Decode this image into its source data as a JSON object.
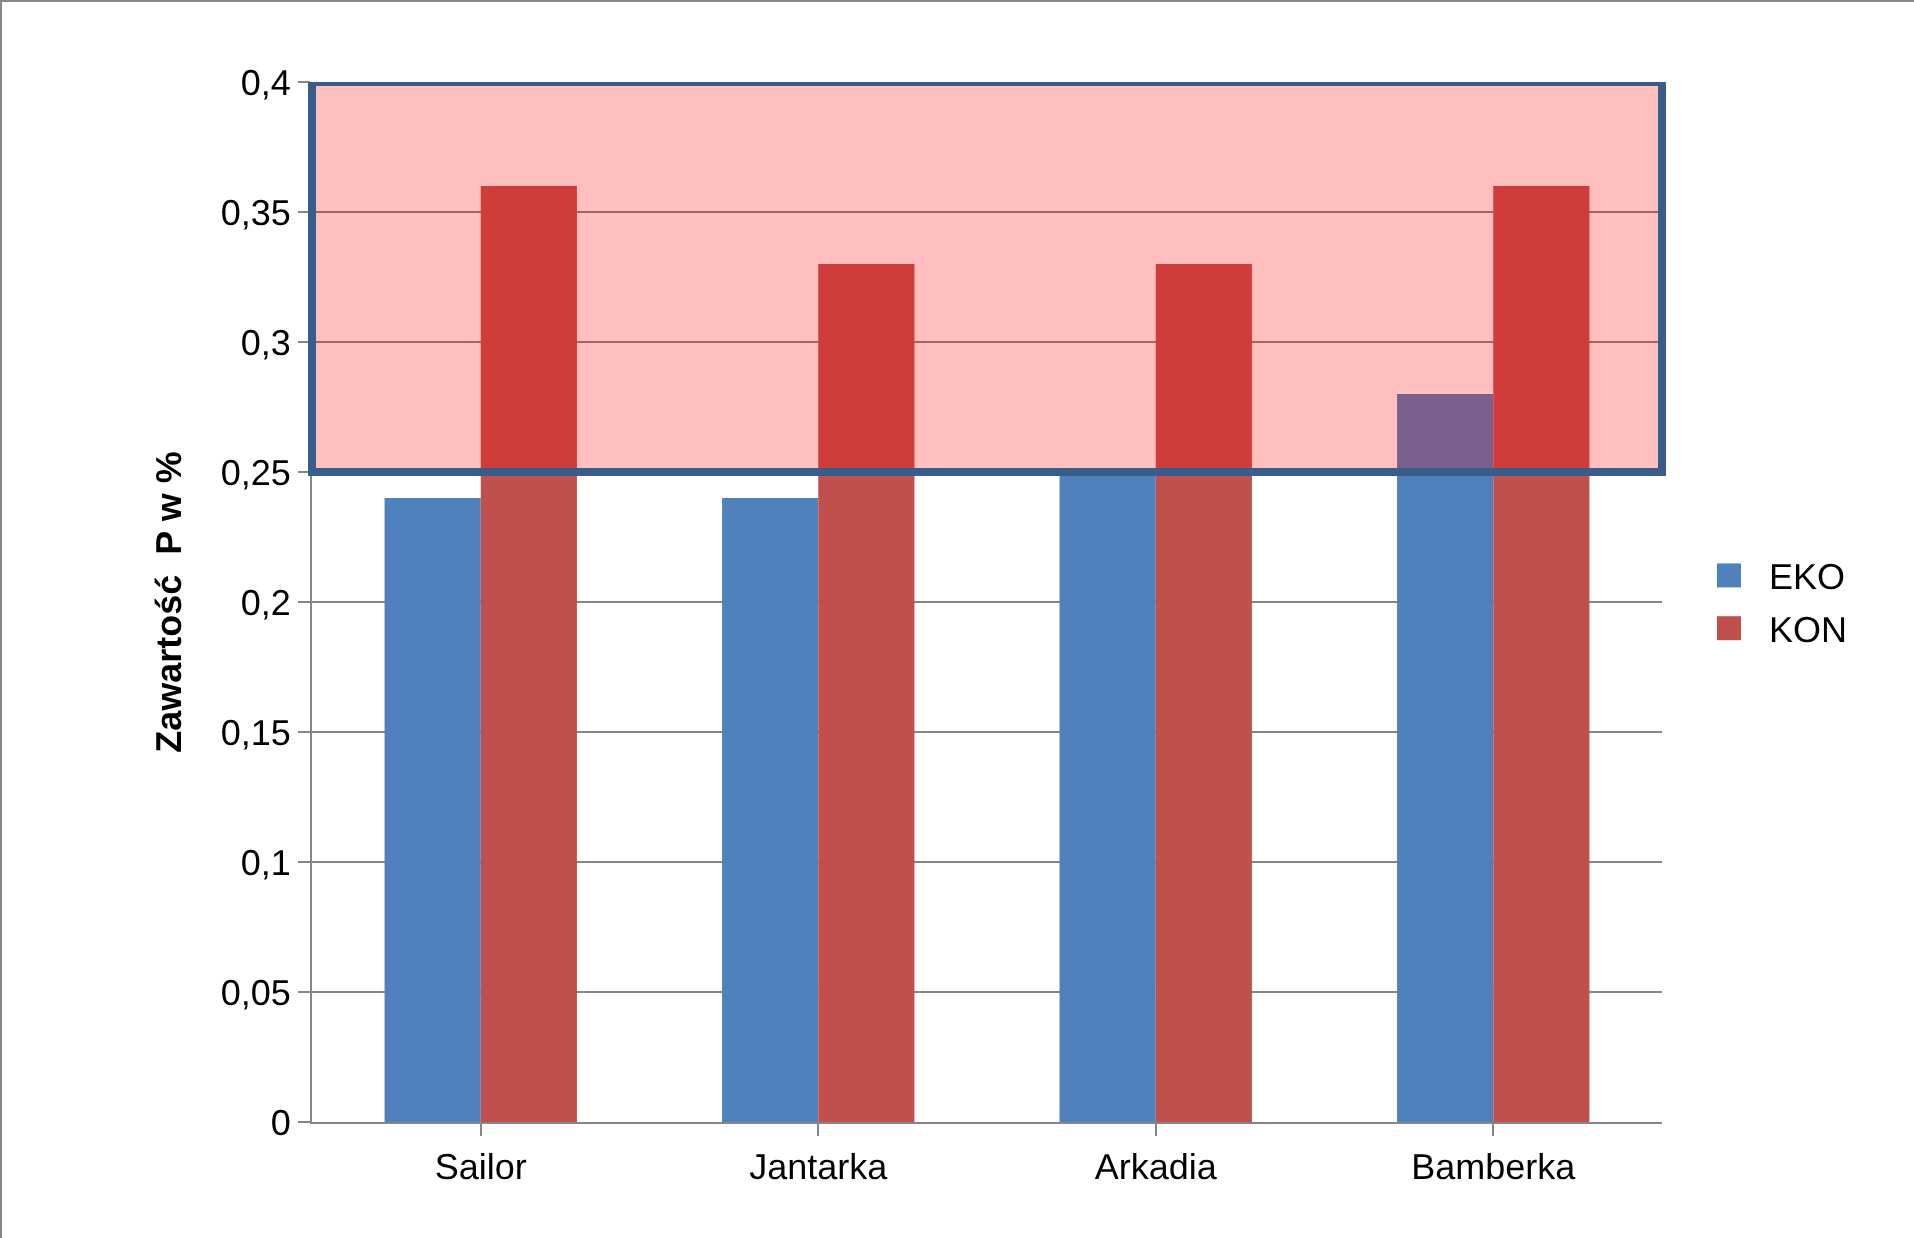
{
  "chart_data": {
    "type": "bar",
    "ylabel": "Zawartość  P w %",
    "categories": [
      "Sailor",
      "Jantarka",
      "Arkadia",
      "Bamberka"
    ],
    "series": [
      {
        "name": "EKO",
        "color": "#4f81bd",
        "values": [
          0.24,
          0.24,
          0.25,
          0.28
        ]
      },
      {
        "name": "KON",
        "color": "#c0504d",
        "values": [
          0.36,
          0.33,
          0.33,
          0.36
        ]
      }
    ],
    "ylim": [
      0,
      0.4
    ],
    "yticks": [
      0,
      {
        "value": 0.05,
        "label": "0,05"
      },
      {
        "value": 0.1,
        "label": "0,1"
      },
      {
        "value": 0.15,
        "label": "0,15"
      },
      {
        "value": 0.2,
        "label": "0,2"
      },
      {
        "value": 0.25,
        "label": "0,25"
      },
      {
        "value": 0.3,
        "label": "0,3"
      },
      {
        "value": 0.35,
        "label": "0,35"
      },
      {
        "value": 0.4,
        "label": "0,4"
      }
    ],
    "bands": [
      {
        "axis": "y",
        "from": 0.25,
        "to": 0.4,
        "color": "#ff0000"
      }
    ],
    "grid": "y",
    "legend": "right"
  }
}
